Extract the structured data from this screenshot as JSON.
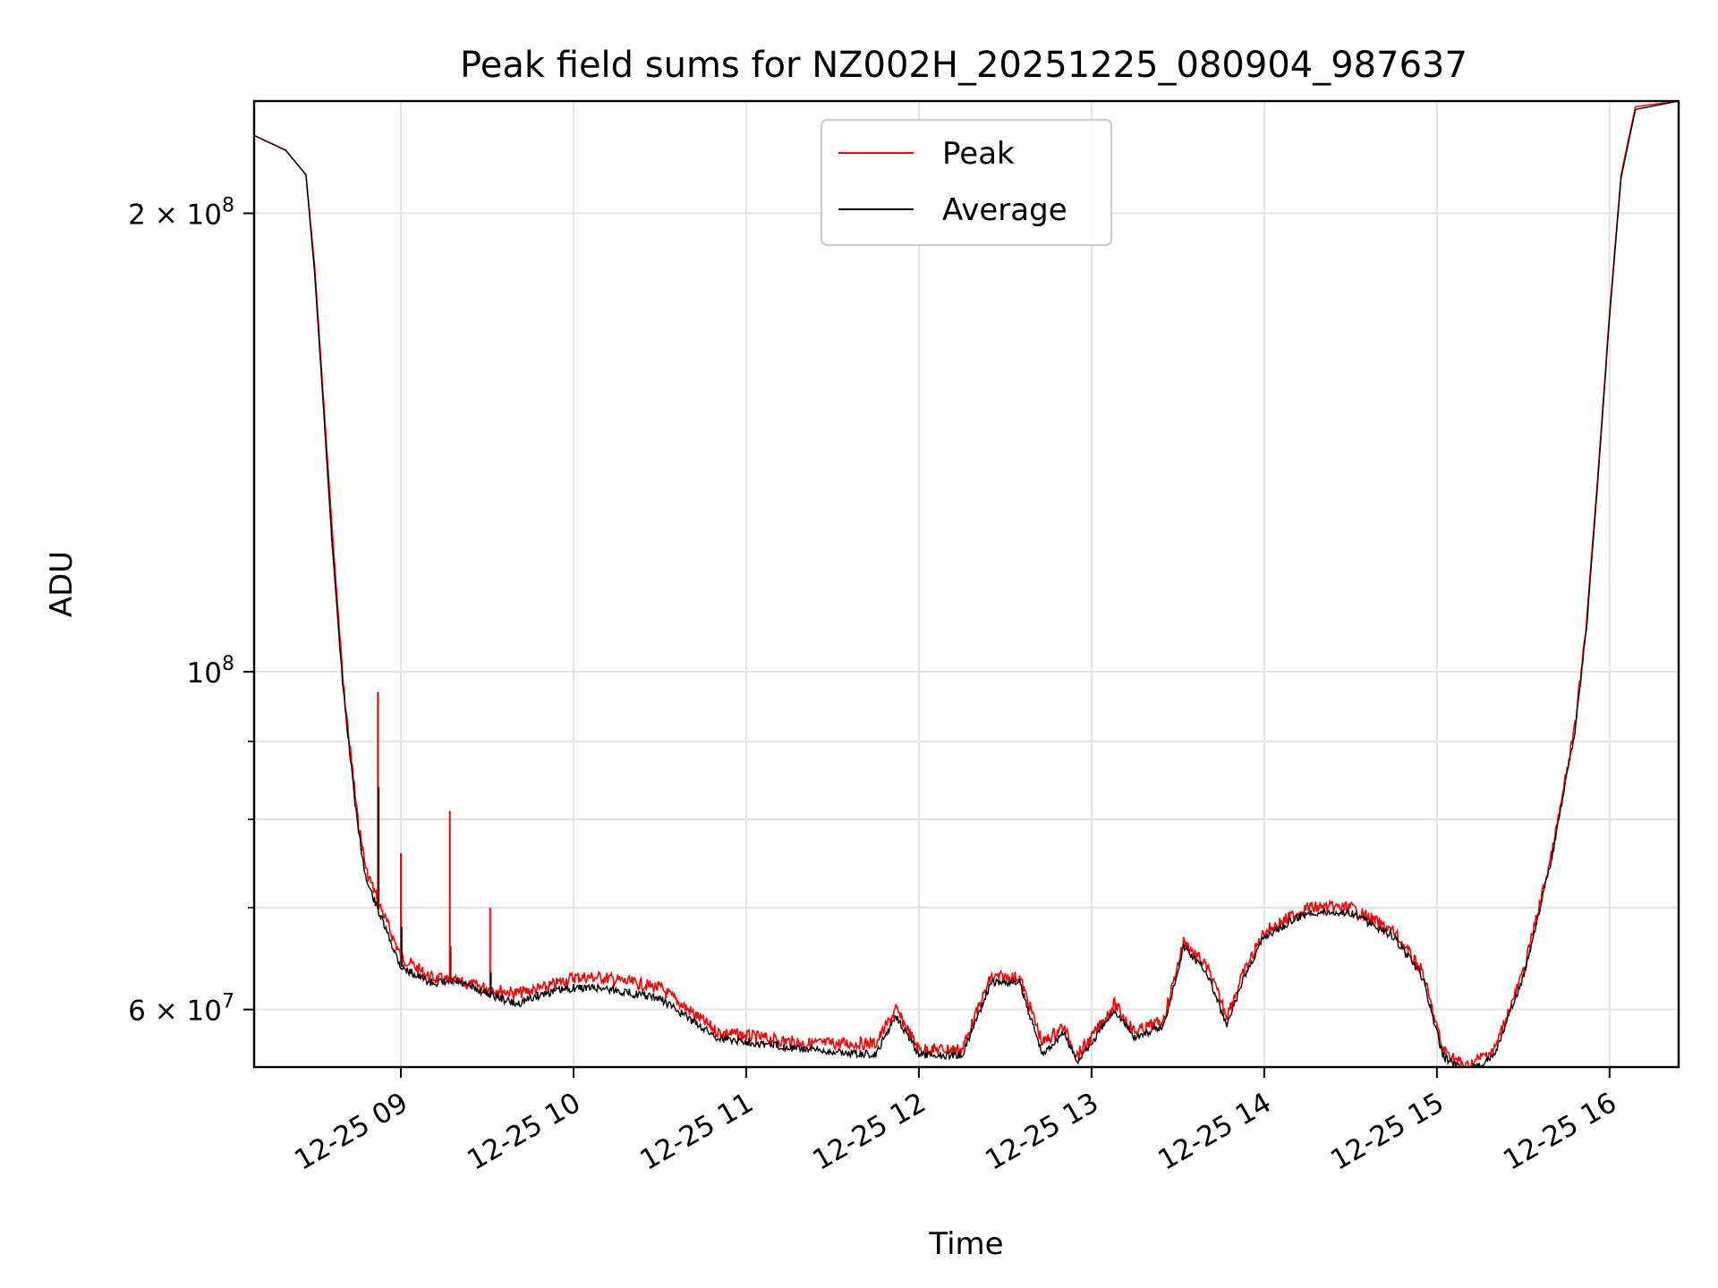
{
  "chart_data": {
    "type": "line",
    "title": "Peak field sums for NZ002H_20251225_080904_987637",
    "xlabel": "Time",
    "ylabel": "ADU",
    "yscale": "log",
    "xlim": [
      "2025-12-25T08:09",
      "2025-12-25T16:24"
    ],
    "ylim": [
      55000000,
      237000000
    ],
    "grid": true,
    "legend": "top-center",
    "x_ticks": [
      {
        "value": "2025-12-25T09:00",
        "label": "12-25 09"
      },
      {
        "value": "2025-12-25T10:00",
        "label": "12-25 10"
      },
      {
        "value": "2025-12-25T11:00",
        "label": "12-25 11"
      },
      {
        "value": "2025-12-25T12:00",
        "label": "12-25 12"
      },
      {
        "value": "2025-12-25T13:00",
        "label": "12-25 13"
      },
      {
        "value": "2025-12-25T14:00",
        "label": "12-25 14"
      },
      {
        "value": "2025-12-25T15:00",
        "label": "12-25 15"
      },
      {
        "value": "2025-12-25T16:00",
        "label": "12-25 16"
      }
    ],
    "y_ticks": [
      {
        "value": 200000000,
        "base": "2 × 10",
        "exp": "8"
      },
      {
        "value": 100000000,
        "base": "10",
        "exp": "8"
      },
      {
        "value": 60000000,
        "base": "6 × 10",
        "exp": "7"
      }
    ],
    "y_minor_ticks": [
      70000000,
      80000000,
      90000000
    ],
    "x": [
      "2025-12-25T08:09",
      "2025-12-25T08:20",
      "2025-12-25T08:27",
      "2025-12-25T08:30",
      "2025-12-25T08:33",
      "2025-12-25T08:36",
      "2025-12-25T08:40",
      "2025-12-25T08:45",
      "2025-12-25T08:48",
      "2025-12-25T08:53",
      "2025-12-25T09:00",
      "2025-12-25T09:10",
      "2025-12-25T09:20",
      "2025-12-25T09:40",
      "2025-12-25T09:50",
      "2025-12-25T10:00",
      "2025-12-25T10:10",
      "2025-12-25T10:30",
      "2025-12-25T10:50",
      "2025-12-25T11:20",
      "2025-12-25T11:45",
      "2025-12-25T11:52",
      "2025-12-25T12:00",
      "2025-12-25T12:15",
      "2025-12-25T12:25",
      "2025-12-25T12:35",
      "2025-12-25T12:43",
      "2025-12-25T12:50",
      "2025-12-25T12:55",
      "2025-12-25T13:00",
      "2025-12-25T13:08",
      "2025-12-25T13:15",
      "2025-12-25T13:25",
      "2025-12-25T13:32",
      "2025-12-25T13:40",
      "2025-12-25T13:47",
      "2025-12-25T13:53",
      "2025-12-25T14:00",
      "2025-12-25T14:15",
      "2025-12-25T14:30",
      "2025-12-25T14:45",
      "2025-12-25T14:55",
      "2025-12-25T15:02",
      "2025-12-25T15:10",
      "2025-12-25T15:20",
      "2025-12-25T15:30",
      "2025-12-25T15:40",
      "2025-12-25T15:48",
      "2025-12-25T15:52",
      "2025-12-25T15:56",
      "2025-12-25T16:00",
      "2025-12-25T16:04",
      "2025-12-25T16:09",
      "2025-12-25T16:24"
    ],
    "series": [
      {
        "name": "Peak",
        "color": "#ff0000",
        "values": [
          225000000,
          220000000,
          212000000,
          185000000,
          152000000,
          125000000,
          98000000,
          80000000,
          74000000,
          70000000,
          65000000,
          63000000,
          62500000,
          61500000,
          62000000,
          63000000,
          63000000,
          62000000,
          58000000,
          57000000,
          57000000,
          60000000,
          56500000,
          56500000,
          63000000,
          63000000,
          57000000,
          58500000,
          56000000,
          57500000,
          60500000,
          58000000,
          59000000,
          66500000,
          64000000,
          59500000,
          63500000,
          67500000,
          70000000,
          70000000,
          67500000,
          63500000,
          56500000,
          55000000,
          56500000,
          63500000,
          76000000,
          92000000,
          108000000,
          135000000,
          172000000,
          212000000,
          235000000,
          237000000
        ]
      },
      {
        "name": "Average",
        "color": "#000000",
        "values": [
          225000000,
          220000000,
          212000000,
          183000000,
          150000000,
          122000000,
          97000000,
          79000000,
          73000000,
          69000000,
          64000000,
          62500000,
          62500000,
          60500000,
          61500000,
          62000000,
          62000000,
          61000000,
          57500000,
          56500000,
          56000000,
          59500000,
          56000000,
          56000000,
          62500000,
          62500000,
          56000000,
          58000000,
          55500000,
          57000000,
          60000000,
          57500000,
          58500000,
          66000000,
          63500000,
          58500000,
          63000000,
          67000000,
          69500000,
          69500000,
          67000000,
          63000000,
          56000000,
          54500000,
          56000000,
          63000000,
          75500000,
          91500000,
          107000000,
          134000000,
          171000000,
          211000000,
          234000000,
          237000000
        ]
      }
    ],
    "spikes": [
      {
        "x": "2025-12-25T08:52",
        "peak": 97000000,
        "average": 84000000
      },
      {
        "x": "2025-12-25T09:00",
        "peak": 76000000,
        "average": 68000000
      },
      {
        "x": "2025-12-25T09:17",
        "peak": 81000000,
        "average": 66000000
      },
      {
        "x": "2025-12-25T09:31",
        "peak": 70000000,
        "average": 63500000
      }
    ]
  }
}
